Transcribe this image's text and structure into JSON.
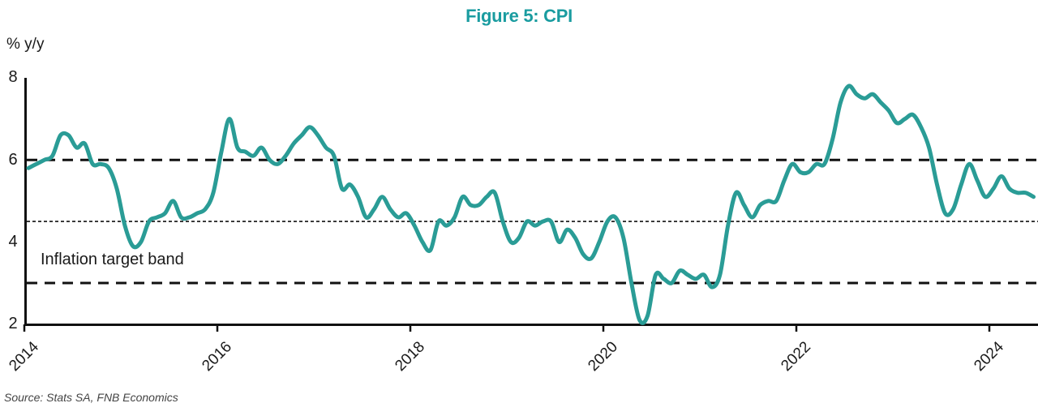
{
  "chart_data": {
    "type": "line",
    "title": "Figure 5: CPI",
    "unit_label": "% y/y",
    "annotation": "Inflation target band",
    "source": "Source: Stats SA, FNB Economics",
    "ylim": [
      2,
      8
    ],
    "xlim": [
      2014,
      2024.5
    ],
    "yticks": [
      8,
      6,
      4,
      2
    ],
    "ytick_labels": [
      "8",
      "6",
      "4",
      "2"
    ],
    "xticks": [
      2014,
      2016,
      2018,
      2020,
      2022,
      2024
    ],
    "xtick_labels": [
      "2014",
      "2016",
      "2018",
      "2020",
      "2022",
      "2024"
    ],
    "grid": false,
    "legend": "none",
    "reference_lines": [
      {
        "value": 6.0,
        "style": "dashed",
        "meaning": "upper inflation target"
      },
      {
        "value": 4.5,
        "style": "dotted",
        "meaning": "target midpoint"
      },
      {
        "value": 3.0,
        "style": "dashed",
        "meaning": "lower inflation target"
      }
    ],
    "series": [
      {
        "name": "CPI % y/y",
        "start": {
          "year": 2014,
          "month": 1
        },
        "frequency": "monthly",
        "values": [
          5.8,
          5.9,
          6.0,
          6.1,
          6.6,
          6.6,
          6.3,
          6.4,
          5.9,
          5.9,
          5.8,
          5.3,
          4.4,
          3.9,
          4.0,
          4.5,
          4.6,
          4.7,
          5.0,
          4.6,
          4.6,
          4.7,
          4.8,
          5.2,
          6.2,
          7.0,
          6.3,
          6.2,
          6.1,
          6.3,
          6.0,
          5.9,
          6.1,
          6.4,
          6.6,
          6.8,
          6.6,
          6.3,
          6.1,
          5.3,
          5.4,
          5.1,
          4.6,
          4.8,
          5.1,
          4.8,
          4.6,
          4.7,
          4.4,
          4.0,
          3.8,
          4.5,
          4.4,
          4.6,
          5.1,
          4.9,
          4.9,
          5.1,
          5.2,
          4.5,
          4.0,
          4.1,
          4.5,
          4.4,
          4.5,
          4.5,
          4.0,
          4.3,
          4.1,
          3.7,
          3.6,
          4.0,
          4.5,
          4.6,
          4.1,
          3.0,
          2.1,
          2.2,
          3.2,
          3.1,
          3.0,
          3.3,
          3.2,
          3.1,
          3.2,
          2.9,
          3.2,
          4.4,
          5.2,
          4.9,
          4.6,
          4.9,
          5.0,
          5.0,
          5.5,
          5.9,
          5.7,
          5.7,
          5.9,
          5.9,
          6.5,
          7.4,
          7.8,
          7.6,
          7.5,
          7.6,
          7.4,
          7.2,
          6.9,
          7.0,
          7.1,
          6.8,
          6.3,
          5.4,
          4.7,
          4.8,
          5.4,
          5.9,
          5.5,
          5.1,
          5.3,
          5.6,
          5.3,
          5.2,
          5.2,
          5.1
        ]
      }
    ],
    "colors": {
      "line": "#2a9c96",
      "title": "#1a9ca0",
      "reference": "#111111",
      "axis": "#111111"
    }
  }
}
